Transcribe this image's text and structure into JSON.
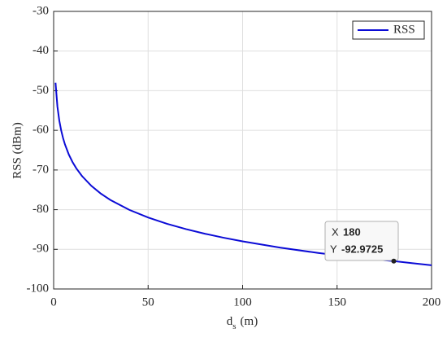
{
  "chart_data": {
    "type": "line",
    "xlabel": {
      "base": "d",
      "subscript": "s",
      "unit": "(m)"
    },
    "ylabel": "RSS (dBm)",
    "x": [
      1,
      2,
      3,
      4,
      5,
      6,
      8,
      10,
      12,
      15,
      20,
      25,
      30,
      40,
      50,
      60,
      70,
      80,
      90,
      100,
      120,
      140,
      160,
      180,
      200
    ],
    "series": [
      {
        "name": "RSS",
        "color": "#0b0bd6",
        "values": [
          -48,
          -54.02,
          -57.54,
          -60.04,
          -61.98,
          -63.56,
          -66.06,
          -68,
          -69.58,
          -71.52,
          -74.02,
          -75.96,
          -77.54,
          -80.04,
          -81.98,
          -83.56,
          -84.9,
          -86.06,
          -87.08,
          -88,
          -89.58,
          -90.92,
          -92.08,
          -92.9725,
          -94.02
        ]
      }
    ],
    "xlim": [
      0,
      200
    ],
    "xticks": [
      0,
      50,
      100,
      150,
      200
    ],
    "ylim": [
      -100,
      -30
    ],
    "yticks": [
      -100,
      -90,
      -80,
      -70,
      -60,
      -50,
      -40,
      -30
    ],
    "grid": true,
    "legend": "top-right",
    "datatip": {
      "x_label": "X",
      "x": 180,
      "y_label": "Y",
      "y": -92.9725
    }
  }
}
